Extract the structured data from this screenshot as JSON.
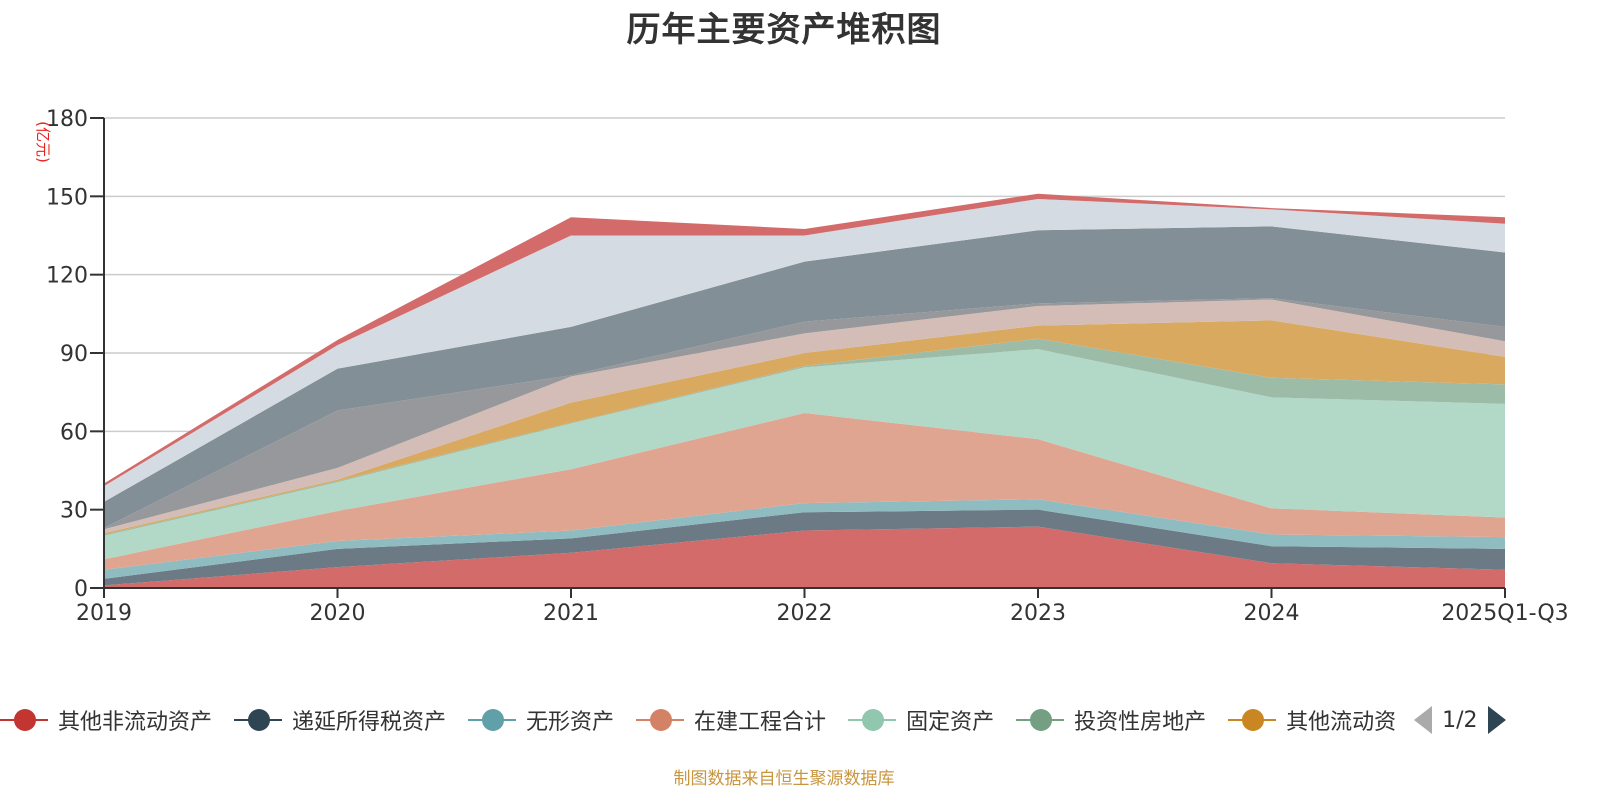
{
  "title": "历年主要资产堆积图",
  "footer": "制图数据来自恒生聚源数据库",
  "legend": {
    "items": [
      {
        "label": "其他非流动资产",
        "color": "#c23531"
      },
      {
        "label": "递延所得税资产",
        "color": "#2f4554"
      },
      {
        "label": "无形资产",
        "color": "#61a0a8"
      },
      {
        "label": "在建工程合计",
        "color": "#d48265"
      },
      {
        "label": "固定资产",
        "color": "#91c7ae"
      },
      {
        "label": "投资性房地产",
        "color": "#749f83"
      },
      {
        "label": "其他流动资",
        "color": "#ca8622"
      }
    ],
    "page_text": "1/2"
  },
  "chart_data": {
    "type": "area",
    "stacked": true,
    "title": "历年主要资产堆积图",
    "ylabel": "(亿元)",
    "xlabel": "",
    "ylim": [
      0,
      180
    ],
    "yticks": [
      0,
      30,
      60,
      90,
      120,
      150,
      180
    ],
    "grid": true,
    "legend_position": "bottom",
    "categories": [
      "2019",
      "2020",
      "2021",
      "2022",
      "2023",
      "2024",
      "2025Q1-Q3"
    ],
    "series": [
      {
        "name": "其他非流动资产",
        "color": "#d46b6b",
        "values": [
          1,
          8,
          13.5,
          22,
          23.5,
          9.5,
          7
        ]
      },
      {
        "name": "递延所得税资产",
        "color": "#6b7a85",
        "values": [
          2.5,
          7,
          5.5,
          7,
          6.5,
          6.5,
          8
        ]
      },
      {
        "name": "无形资产",
        "color": "#8fbcc1",
        "values": [
          3.5,
          3,
          3,
          3.5,
          4,
          4.5,
          4.5
        ]
      },
      {
        "name": "在建工程合计",
        "color": "#e0a591",
        "values": [
          4,
          11.5,
          23.5,
          34.5,
          23,
          10,
          7.5
        ]
      },
      {
        "name": "固定资产",
        "color": "#b2d8c7",
        "values": [
          9,
          11,
          17.5,
          17.5,
          34.5,
          42.5,
          43.5
        ]
      },
      {
        "name": "投资性房地产",
        "color": "#9dbca8",
        "values": [
          0.5,
          0.5,
          0.3,
          0.5,
          4,
          7.5,
          7.5
        ]
      },
      {
        "name": "其他流动资产",
        "color": "#d9a960",
        "values": [
          0.5,
          0.5,
          7.7,
          5,
          5,
          22,
          10.5
        ]
      },
      {
        "name": "",
        "color": "#d4bdb6",
        "values": [
          1.5,
          4.5,
          10,
          7.5,
          7.5,
          8,
          6
        ]
      },
      {
        "name": "",
        "color": "#97989b",
        "values": [
          0.5,
          22,
          0.5,
          4.5,
          1,
          0.5,
          5.5
        ]
      },
      {
        "name": "",
        "color": "#838f96",
        "values": [
          10,
          16,
          18.5,
          23,
          28,
          27.5,
          28.5
        ]
      },
      {
        "name": "",
        "color": "#d5dbe2",
        "values": [
          6,
          9,
          35,
          10,
          12,
          6.5,
          11
        ]
      },
      {
        "name": "",
        "color": "#d46b6b",
        "values": [
          1,
          2,
          7,
          2.5,
          2,
          0.5,
          2.5
        ]
      }
    ]
  }
}
